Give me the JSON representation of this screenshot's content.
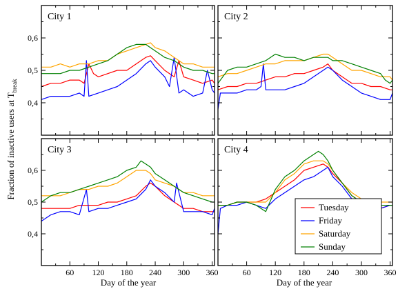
{
  "figure": {
    "ylabel_main": "Fraction of inactive users at T",
    "ylabel_sub": "break",
    "xlabel": "Day of the year"
  },
  "legend": [
    {
      "label": "Tuesday",
      "color": "#ff0000"
    },
    {
      "label": "Friday",
      "color": "#0000ff"
    },
    {
      "label": "Saturday",
      "color": "#ffa500"
    },
    {
      "label": "Sunday",
      "color": "#008000"
    }
  ],
  "chart_data": [
    {
      "type": "line",
      "title": "City 1",
      "xlim": [
        0,
        365
      ],
      "ylim": [
        0.3,
        0.7
      ],
      "xticks": [
        60,
        120,
        180,
        240,
        300,
        360
      ],
      "yticks": [
        0.4,
        0.5,
        0.6
      ],
      "ytick_labels": [
        "0,4",
        "0,5",
        "0,6"
      ],
      "series": [
        {
          "name": "Tuesday",
          "color": "#ff0000",
          "x": [
            0,
            20,
            40,
            60,
            80,
            90,
            100,
            110,
            120,
            140,
            160,
            180,
            200,
            220,
            230,
            240,
            260,
            280,
            290,
            300,
            320,
            340,
            360,
            365
          ],
          "y": [
            0.45,
            0.46,
            0.46,
            0.47,
            0.47,
            0.46,
            0.52,
            0.49,
            0.48,
            0.49,
            0.5,
            0.5,
            0.52,
            0.54,
            0.545,
            0.53,
            0.5,
            0.48,
            0.53,
            0.48,
            0.47,
            0.46,
            0.47,
            0.46
          ]
        },
        {
          "name": "Friday",
          "color": "#0000ff",
          "x": [
            0,
            20,
            40,
            60,
            80,
            90,
            95,
            100,
            120,
            140,
            160,
            180,
            200,
            220,
            230,
            240,
            260,
            270,
            280,
            290,
            300,
            320,
            340,
            350,
            360,
            365
          ],
          "y": [
            0.41,
            0.42,
            0.42,
            0.42,
            0.43,
            0.42,
            0.53,
            0.42,
            0.43,
            0.44,
            0.45,
            0.47,
            0.49,
            0.52,
            0.53,
            0.51,
            0.48,
            0.45,
            0.54,
            0.43,
            0.44,
            0.42,
            0.43,
            0.5,
            0.44,
            0.43
          ]
        },
        {
          "name": "Saturday",
          "color": "#ffa500",
          "x": [
            0,
            20,
            40,
            60,
            80,
            100,
            120,
            140,
            160,
            180,
            200,
            220,
            230,
            240,
            260,
            280,
            300,
            320,
            340,
            360,
            365
          ],
          "y": [
            0.51,
            0.51,
            0.52,
            0.51,
            0.52,
            0.52,
            0.53,
            0.53,
            0.55,
            0.56,
            0.57,
            0.58,
            0.585,
            0.57,
            0.56,
            0.54,
            0.52,
            0.52,
            0.51,
            0.51,
            0.51
          ]
        },
        {
          "name": "Sunday",
          "color": "#008000",
          "x": [
            0,
            20,
            40,
            60,
            80,
            100,
            120,
            140,
            160,
            180,
            200,
            220,
            230,
            240,
            260,
            280,
            300,
            320,
            340,
            360,
            365
          ],
          "y": [
            0.49,
            0.49,
            0.49,
            0.5,
            0.5,
            0.51,
            0.52,
            0.53,
            0.55,
            0.57,
            0.58,
            0.58,
            0.57,
            0.56,
            0.54,
            0.53,
            0.51,
            0.5,
            0.5,
            0.49,
            0.49
          ]
        }
      ]
    },
    {
      "type": "line",
      "title": "City 2",
      "xlim": [
        0,
        365
      ],
      "ylim": [
        0.3,
        0.7
      ],
      "xticks": [
        60,
        120,
        180,
        240,
        300,
        360
      ],
      "yticks": [
        0.4,
        0.5,
        0.6
      ],
      "ytick_labels": [
        "0,4",
        "0,5",
        "0,6"
      ],
      "series": [
        {
          "name": "Tuesday",
          "color": "#ff0000",
          "x": [
            0,
            20,
            40,
            60,
            80,
            100,
            120,
            140,
            160,
            180,
            200,
            220,
            230,
            240,
            260,
            280,
            300,
            320,
            340,
            360,
            365
          ],
          "y": [
            0.44,
            0.45,
            0.45,
            0.46,
            0.46,
            0.47,
            0.48,
            0.48,
            0.49,
            0.49,
            0.5,
            0.51,
            0.52,
            0.5,
            0.48,
            0.46,
            0.46,
            0.45,
            0.45,
            0.44,
            0.44
          ]
        },
        {
          "name": "Friday",
          "color": "#0000ff",
          "x": [
            0,
            5,
            20,
            40,
            60,
            80,
            90,
            95,
            100,
            120,
            140,
            160,
            180,
            200,
            220,
            230,
            240,
            260,
            280,
            300,
            320,
            340,
            360,
            365
          ],
          "y": [
            0.38,
            0.43,
            0.43,
            0.43,
            0.44,
            0.44,
            0.45,
            0.52,
            0.44,
            0.44,
            0.44,
            0.45,
            0.46,
            0.48,
            0.5,
            0.51,
            0.5,
            0.47,
            0.45,
            0.43,
            0.42,
            0.41,
            0.41,
            0.43
          ]
        },
        {
          "name": "Saturday",
          "color": "#ffa500",
          "x": [
            0,
            20,
            40,
            60,
            80,
            100,
            120,
            140,
            160,
            180,
            200,
            220,
            230,
            240,
            260,
            280,
            300,
            320,
            340,
            360,
            365
          ],
          "y": [
            0.48,
            0.49,
            0.49,
            0.5,
            0.51,
            0.52,
            0.52,
            0.53,
            0.53,
            0.53,
            0.54,
            0.55,
            0.55,
            0.54,
            0.52,
            0.5,
            0.5,
            0.49,
            0.48,
            0.48,
            0.47
          ]
        },
        {
          "name": "Sunday",
          "color": "#008000",
          "x": [
            0,
            20,
            40,
            60,
            80,
            100,
            120,
            140,
            160,
            180,
            200,
            220,
            230,
            240,
            260,
            280,
            300,
            320,
            340,
            350,
            360,
            365
          ],
          "y": [
            0.46,
            0.5,
            0.51,
            0.51,
            0.52,
            0.53,
            0.55,
            0.54,
            0.54,
            0.53,
            0.54,
            0.54,
            0.54,
            0.53,
            0.53,
            0.52,
            0.51,
            0.5,
            0.49,
            0.47,
            0.46,
            0.47
          ]
        }
      ]
    },
    {
      "type": "line",
      "title": "City 3",
      "xlim": [
        0,
        365
      ],
      "ylim": [
        0.3,
        0.7
      ],
      "xticks": [
        60,
        120,
        180,
        240,
        300,
        360
      ],
      "yticks": [
        0.4,
        0.5,
        0.6
      ],
      "ytick_labels": [
        "0,4",
        "0,5",
        "0,6"
      ],
      "series": [
        {
          "name": "Tuesday",
          "color": "#ff0000",
          "x": [
            0,
            20,
            40,
            60,
            80,
            100,
            120,
            140,
            160,
            180,
            200,
            220,
            230,
            240,
            260,
            280,
            300,
            320,
            340,
            360,
            365
          ],
          "y": [
            0.48,
            0.48,
            0.48,
            0.48,
            0.49,
            0.49,
            0.49,
            0.5,
            0.5,
            0.51,
            0.52,
            0.55,
            0.56,
            0.55,
            0.52,
            0.5,
            0.48,
            0.48,
            0.47,
            0.47,
            0.47
          ]
        },
        {
          "name": "Friday",
          "color": "#0000ff",
          "x": [
            0,
            20,
            40,
            60,
            80,
            95,
            100,
            120,
            140,
            160,
            180,
            200,
            220,
            230,
            240,
            260,
            280,
            285,
            300,
            320,
            340,
            360,
            365
          ],
          "y": [
            0.44,
            0.46,
            0.47,
            0.47,
            0.46,
            0.54,
            0.47,
            0.48,
            0.48,
            0.49,
            0.5,
            0.51,
            0.54,
            0.57,
            0.55,
            0.53,
            0.5,
            0.56,
            0.47,
            0.47,
            0.47,
            0.46,
            0.48
          ]
        },
        {
          "name": "Saturday",
          "color": "#ffa500",
          "x": [
            0,
            20,
            40,
            60,
            80,
            100,
            120,
            140,
            160,
            180,
            200,
            220,
            230,
            240,
            260,
            280,
            300,
            320,
            340,
            360,
            365
          ],
          "y": [
            0.52,
            0.52,
            0.52,
            0.53,
            0.54,
            0.54,
            0.55,
            0.55,
            0.56,
            0.58,
            0.6,
            0.6,
            0.59,
            0.57,
            0.56,
            0.55,
            0.53,
            0.53,
            0.52,
            0.52,
            0.52
          ]
        },
        {
          "name": "Sunday",
          "color": "#008000",
          "x": [
            0,
            20,
            40,
            60,
            80,
            100,
            120,
            140,
            160,
            180,
            200,
            210,
            220,
            230,
            240,
            260,
            280,
            300,
            320,
            340,
            360,
            365
          ],
          "y": [
            0.5,
            0.52,
            0.53,
            0.53,
            0.54,
            0.55,
            0.56,
            0.57,
            0.58,
            0.6,
            0.61,
            0.63,
            0.62,
            0.61,
            0.59,
            0.57,
            0.55,
            0.53,
            0.52,
            0.51,
            0.5,
            0.5
          ]
        }
      ]
    },
    {
      "type": "line",
      "title": "City 4",
      "xlim": [
        0,
        365
      ],
      "ylim": [
        0.3,
        0.7
      ],
      "xticks": [
        60,
        120,
        180,
        240,
        300,
        360
      ],
      "yticks": [
        0.4,
        0.5,
        0.6
      ],
      "ytick_labels": [
        "0,4",
        "0,5",
        "0,6"
      ],
      "series": [
        {
          "name": "Tuesday",
          "color": "#ff0000",
          "x": [
            0,
            20,
            40,
            60,
            80,
            100,
            120,
            140,
            160,
            180,
            200,
            220,
            230,
            240,
            260,
            280,
            300,
            320,
            340,
            360,
            365
          ],
          "y": [
            0.49,
            0.49,
            0.5,
            0.5,
            0.5,
            0.51,
            0.53,
            0.55,
            0.57,
            0.6,
            0.61,
            0.62,
            0.61,
            0.59,
            0.56,
            0.52,
            0.5,
            0.49,
            0.48,
            0.49,
            0.49
          ]
        },
        {
          "name": "Friday",
          "color": "#0000ff",
          "x": [
            0,
            5,
            20,
            40,
            60,
            80,
            100,
            120,
            140,
            160,
            180,
            200,
            220,
            230,
            240,
            260,
            280,
            300,
            320,
            340,
            360,
            365
          ],
          "y": [
            0.4,
            0.48,
            0.49,
            0.49,
            0.5,
            0.49,
            0.48,
            0.51,
            0.53,
            0.55,
            0.57,
            0.58,
            0.6,
            0.61,
            0.58,
            0.55,
            0.51,
            0.49,
            0.48,
            0.48,
            0.49,
            0.49
          ]
        },
        {
          "name": "Saturday",
          "color": "#ffa500",
          "x": [
            0,
            20,
            40,
            60,
            80,
            100,
            120,
            140,
            160,
            180,
            200,
            220,
            230,
            240,
            260,
            280,
            300,
            320,
            340,
            360,
            365
          ],
          "y": [
            0.49,
            0.49,
            0.5,
            0.5,
            0.5,
            0.5,
            0.53,
            0.57,
            0.59,
            0.62,
            0.63,
            0.63,
            0.62,
            0.6,
            0.56,
            0.53,
            0.51,
            0.5,
            0.5,
            0.5,
            0.5
          ]
        },
        {
          "name": "Sunday",
          "color": "#008000",
          "x": [
            0,
            20,
            40,
            60,
            80,
            100,
            120,
            140,
            160,
            180,
            200,
            210,
            220,
            230,
            240,
            260,
            280,
            300,
            320,
            340,
            360,
            365
          ],
          "y": [
            0.49,
            0.49,
            0.5,
            0.5,
            0.49,
            0.47,
            0.54,
            0.58,
            0.6,
            0.63,
            0.65,
            0.66,
            0.65,
            0.63,
            0.6,
            0.56,
            0.52,
            0.5,
            0.49,
            0.49,
            0.49,
            0.49
          ]
        }
      ]
    }
  ]
}
